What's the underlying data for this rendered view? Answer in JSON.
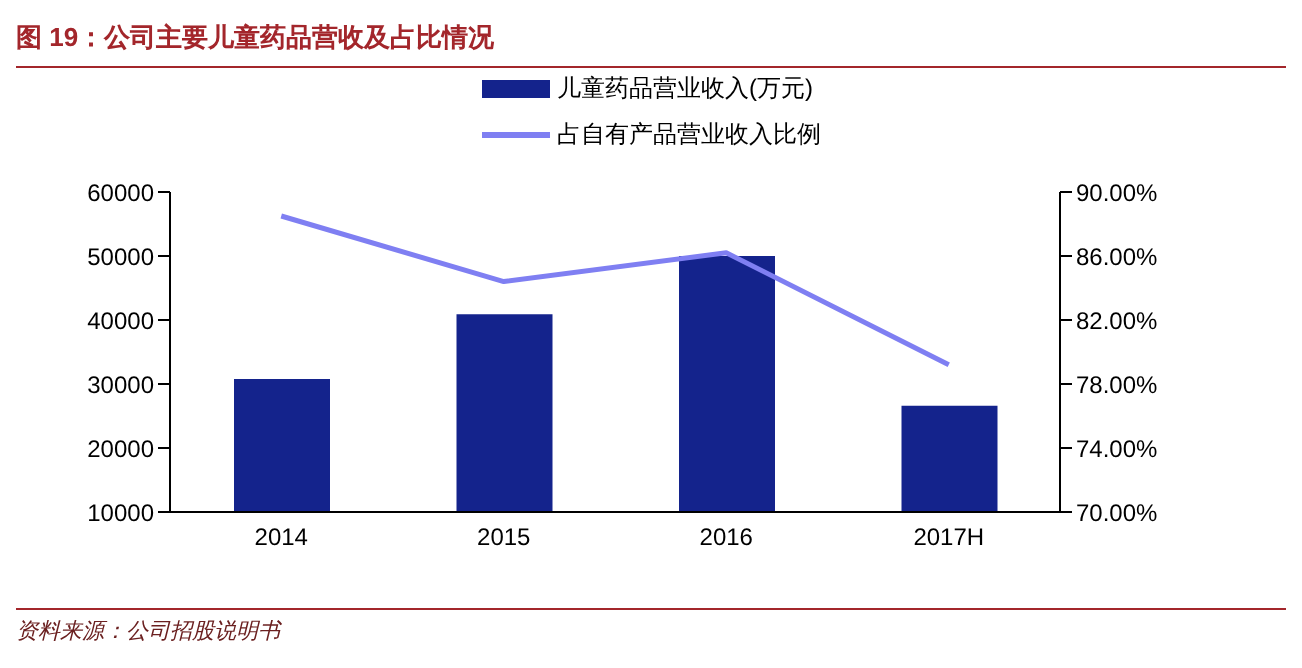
{
  "chart_data": {
    "type": "bar",
    "title": "图 19：公司主要儿童药品营收及占比情况",
    "annotations": [
      "资料来源：公司招股说明书"
    ],
    "categories": [
      "2014",
      "2015",
      "2016",
      "2017H"
    ],
    "series": [
      {
        "name": "儿童药品营业收入(万元)",
        "color": "#14238c",
        "values": [
          30800,
          40900,
          50000,
          26600
        ]
      },
      {
        "name": "占自有产品营业收入比例",
        "type": "line",
        "axis": "y2",
        "color": "#7f7ff2",
        "values": [
          88.5,
          84.4,
          86.2,
          79.2
        ]
      }
    ],
    "ylim": [
      10000,
      60000
    ],
    "yticks": [
      10000,
      20000,
      30000,
      40000,
      50000,
      60000
    ],
    "y2lim": [
      70,
      90
    ],
    "y2ticks": [
      {
        "value": 70,
        "label": "70.00%"
      },
      {
        "value": 74,
        "label": "74.00%"
      },
      {
        "value": 78,
        "label": "78.00%"
      },
      {
        "value": 82,
        "label": "82.00%"
      },
      {
        "value": 86,
        "label": "86.00%"
      },
      {
        "value": 90,
        "label": "90.00%"
      }
    ],
    "legend": "top",
    "marker": "none",
    "line_style": "solid",
    "grid": false
  }
}
